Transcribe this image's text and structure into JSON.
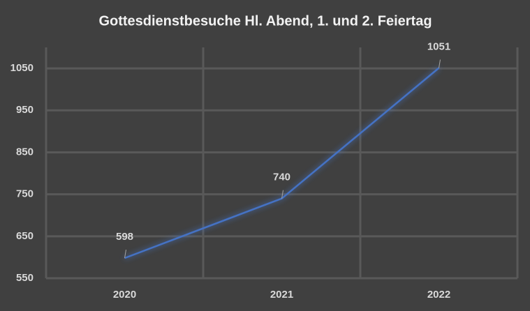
{
  "chart_data": {
    "type": "line",
    "title": "Gottesdienstbesuche Hl. Abend, 1. und 2. Feiertag",
    "categories": [
      "2020",
      "2021",
      "2022"
    ],
    "values": [
      598,
      740,
      1051
    ],
    "color": "#4472c4",
    "ylim": [
      550,
      1100
    ],
    "yticks": [
      550,
      650,
      750,
      850,
      950,
      1050
    ],
    "grid": true
  }
}
